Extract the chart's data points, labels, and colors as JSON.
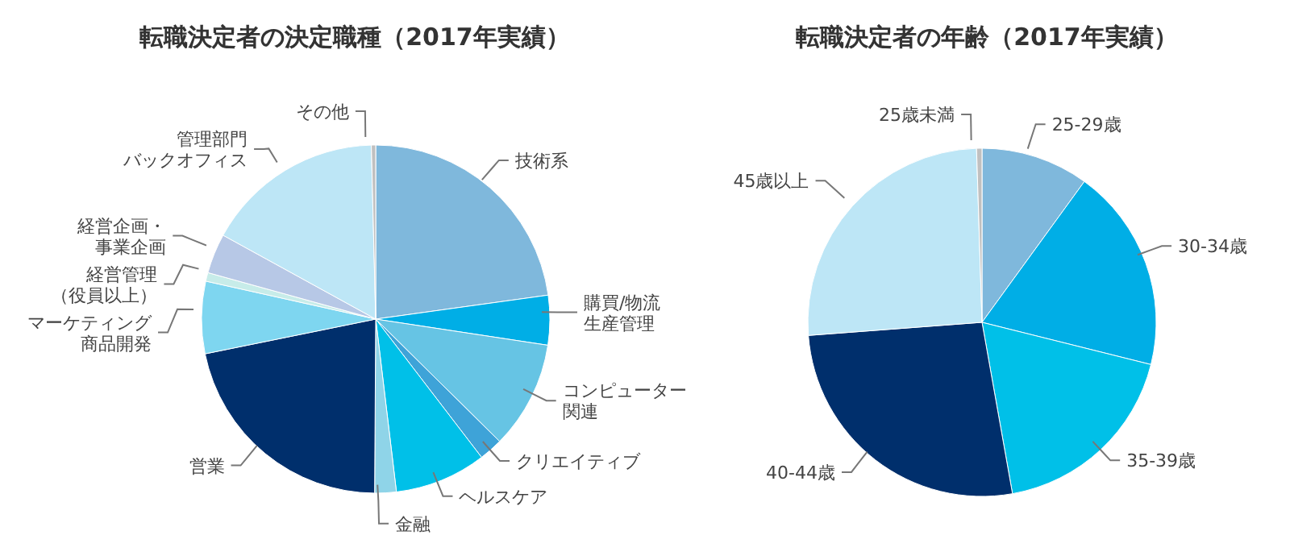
{
  "chart_data": [
    {
      "type": "pie",
      "title": "転職決定者の決定職種（2017年実績）",
      "categories": [
        "技術系",
        "購買/物流生産管理",
        "コンピューター関連",
        "クリエイティブ",
        "ヘルスケア",
        "金融",
        "営業",
        "マーケティング商品開発",
        "経営管理（役員以上）",
        "経営企画・事業企画",
        "管理部門バックオフィス",
        "その他"
      ],
      "values": [
        22.8,
        4.6,
        10,
        2.2,
        8.5,
        2,
        21.7,
        6.7,
        0.8,
        3.7,
        16.6,
        0.4
      ],
      "colors": [
        "#7fb8dc",
        "#00aee6",
        "#66c4e4",
        "#3ea3d8",
        "#00c0e8",
        "#8fd4e8",
        "#002f6c",
        "#7ed6f0",
        "#c7ece9",
        "#b7c8e6",
        "#bde6f6",
        "#c0c0c0"
      ],
      "legend": false
    },
    {
      "type": "pie",
      "title": "転職決定者の年齢（2017年実績）",
      "categories": [
        "25-29歳",
        "30-34歳",
        "35-39歳",
        "40-44歳",
        "45歳以上",
        "25歳未満"
      ],
      "values": [
        10,
        18.9,
        18.3,
        26.6,
        25.7,
        0.5
      ],
      "colors": [
        "#7fb8dc",
        "#00aee6",
        "#00c0e8",
        "#002f6c",
        "#bde6f6",
        "#c0c0c0"
      ],
      "legend": false
    }
  ]
}
